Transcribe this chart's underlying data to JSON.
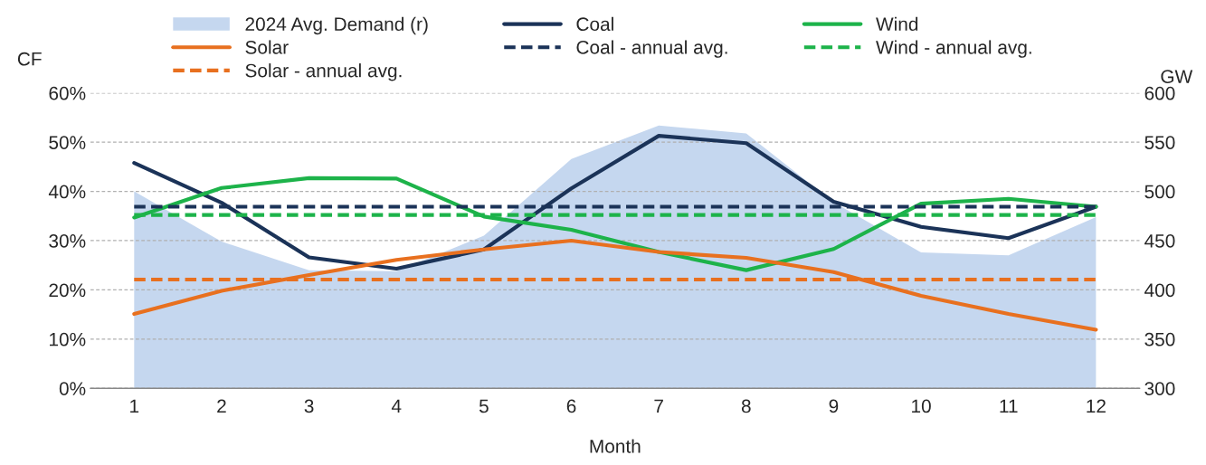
{
  "chart_data": {
    "type": "line",
    "xlabel": "Month",
    "ylabel": "CF",
    "y2label": "GW",
    "categories": [
      "1",
      "2",
      "3",
      "4",
      "5",
      "6",
      "7",
      "8",
      "9",
      "10",
      "11",
      "12"
    ],
    "series": [
      {
        "name": "2024 Avg. Demand (r)",
        "type": "area",
        "axis": "y2",
        "color": "#c5d7ef",
        "values": [
          500,
          449,
          420,
          419,
          455,
          533,
          567,
          559,
          489,
          438,
          435,
          474
        ]
      },
      {
        "name": "Coal",
        "color": "#1b3358",
        "line_style": "solid",
        "values": [
          45.8,
          37.7,
          26.6,
          24.3,
          28.2,
          40.6,
          51.3,
          49.8,
          37.9,
          32.8,
          30.5,
          36.9
        ]
      },
      {
        "name": "Wind",
        "color": "#1db34a",
        "line_style": "solid",
        "values": [
          34.7,
          40.7,
          42.7,
          42.6,
          34.9,
          32.2,
          27.7,
          24.0,
          28.3,
          37.5,
          38.5,
          36.9
        ]
      },
      {
        "name": "Solar",
        "color": "#e8701f",
        "line_style": "solid",
        "values": [
          15.1,
          19.8,
          23.0,
          26.1,
          28.2,
          30.0,
          27.7,
          26.5,
          23.6,
          18.8,
          15.1,
          11.9
        ]
      },
      {
        "name": "Coal - annual avg.",
        "color": "#1b3358",
        "line_style": "dashed",
        "values": [
          36.9,
          36.9,
          36.9,
          36.9,
          36.9,
          36.9,
          36.9,
          36.9,
          36.9,
          36.9,
          36.9,
          36.9
        ]
      },
      {
        "name": "Wind - annual avg.",
        "color": "#1db34a",
        "line_style": "dashed",
        "values": [
          35.2,
          35.2,
          35.2,
          35.2,
          35.2,
          35.2,
          35.2,
          35.2,
          35.2,
          35.2,
          35.2,
          35.2
        ]
      },
      {
        "name": "Solar - annual avg.",
        "color": "#e8701f",
        "line_style": "dashed",
        "values": [
          22.1,
          22.1,
          22.1,
          22.1,
          22.1,
          22.1,
          22.1,
          22.1,
          22.1,
          22.1,
          22.1,
          22.1
        ]
      }
    ],
    "ylim": [
      0,
      60
    ],
    "yticks": [
      {
        "value": 0,
        "label": "0%"
      },
      {
        "value": 10,
        "label": "10%"
      },
      {
        "value": 20,
        "label": "20%"
      },
      {
        "value": 30,
        "label": "30%"
      },
      {
        "value": 40,
        "label": "40%"
      },
      {
        "value": 50,
        "label": "50%"
      },
      {
        "value": 60,
        "label": "60%"
      }
    ],
    "y2lim": [
      300,
      600
    ],
    "y2ticks": [
      300,
      350,
      400,
      450,
      500,
      550,
      600
    ],
    "grid": "y",
    "legend": "top",
    "marker": "none"
  }
}
